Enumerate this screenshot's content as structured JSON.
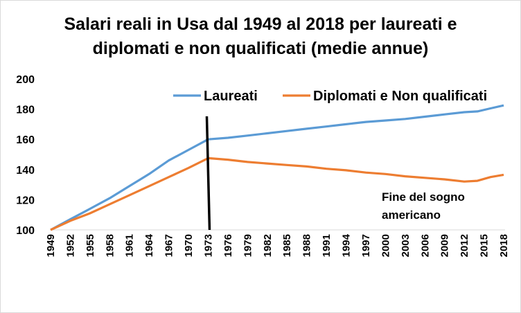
{
  "chart_data": {
    "type": "line",
    "title_lines": [
      "Salari reali in Usa dal 1949 al 2018 per laureati e",
      "diplomati e non qualificati (medie annue)"
    ],
    "xlabel": "",
    "ylabel": "",
    "ylim": [
      100,
      200
    ],
    "yticks": [
      100,
      120,
      140,
      160,
      180,
      200
    ],
    "xlim": [
      1949,
      2018
    ],
    "xticks": [
      "1949",
      "1952",
      "1955",
      "1958",
      "1961",
      "1964",
      "1967",
      "1970",
      "1973",
      "1976",
      "1979",
      "1982",
      "1985",
      "1988",
      "1991",
      "1994",
      "1997",
      "2000",
      "2003",
      "2006",
      "2009",
      "2012",
      "2015",
      "2018"
    ],
    "grid": false,
    "legend": "top-right",
    "vertical_marker": {
      "x": 1973,
      "color": "#000000"
    },
    "annotation": {
      "lines": [
        "Fine del sogno",
        "americano"
      ],
      "x": 2000,
      "y": 121
    },
    "series": [
      {
        "name": "Laureati",
        "color": "#5b9bd5",
        "points": [
          [
            1949,
            100
          ],
          [
            1952,
            107
          ],
          [
            1955,
            114
          ],
          [
            1958,
            121
          ],
          [
            1961,
            129
          ],
          [
            1964,
            137
          ],
          [
            1967,
            146
          ],
          [
            1970,
            153
          ],
          [
            1973,
            160
          ],
          [
            1976,
            161
          ],
          [
            1979,
            162.5
          ],
          [
            1982,
            164
          ],
          [
            1985,
            165.5
          ],
          [
            1988,
            167
          ],
          [
            1991,
            168.5
          ],
          [
            1994,
            170
          ],
          [
            1997,
            171.5
          ],
          [
            2000,
            172.5
          ],
          [
            2003,
            173.5
          ],
          [
            2006,
            175
          ],
          [
            2009,
            176.5
          ],
          [
            2012,
            178
          ],
          [
            2014,
            178.5
          ],
          [
            2016,
            180.5
          ],
          [
            2018,
            182.5
          ]
        ]
      },
      {
        "name": "Diplomati e Non qualificati",
        "color": "#ed7d31",
        "points": [
          [
            1949,
            100
          ],
          [
            1952,
            106
          ],
          [
            1955,
            111
          ],
          [
            1958,
            117
          ],
          [
            1961,
            123
          ],
          [
            1964,
            129
          ],
          [
            1967,
            135
          ],
          [
            1970,
            141
          ],
          [
            1973,
            147.5
          ],
          [
            1976,
            146.5
          ],
          [
            1979,
            145
          ],
          [
            1982,
            144
          ],
          [
            1985,
            143
          ],
          [
            1988,
            142
          ],
          [
            1991,
            140.5
          ],
          [
            1994,
            139.5
          ],
          [
            1997,
            138
          ],
          [
            2000,
            137
          ],
          [
            2003,
            135.5
          ],
          [
            2006,
            134.5
          ],
          [
            2009,
            133.5
          ],
          [
            2012,
            132
          ],
          [
            2014,
            132.5
          ],
          [
            2016,
            135
          ],
          [
            2018,
            136.5
          ]
        ]
      }
    ]
  }
}
